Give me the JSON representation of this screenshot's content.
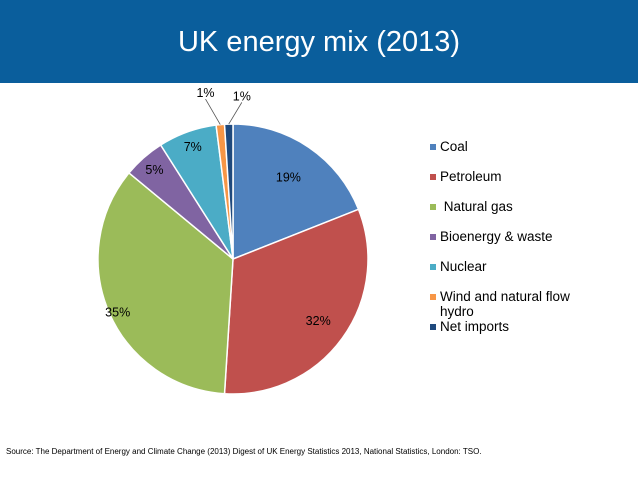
{
  "header": {
    "title": "UK energy mix (2013)"
  },
  "chart_data": {
    "type": "pie",
    "title": "UK energy mix (2013)",
    "categories": [
      "Coal",
      "Petroleum",
      "Natural gas",
      "Bioenergy & waste",
      "Nuclear",
      "Wind and natural flow hydro",
      "Net imports"
    ],
    "values": [
      19,
      32,
      35,
      5,
      7,
      1,
      1
    ],
    "labels": [
      "19%",
      "32%",
      "35%",
      "5%",
      "7%",
      "1%",
      "1%"
    ],
    "colors": [
      "#4f81bd",
      "#c0504d",
      "#9bbb59",
      "#8064a2",
      "#4bacc6",
      "#f79646",
      "#1f497d"
    ],
    "legend_position": "right"
  },
  "legend": {
    "items": [
      {
        "label": "Coal",
        "color": "#4f81bd"
      },
      {
        "label": "Petroleum",
        "color": "#c0504d"
      },
      {
        "label": " Natural gas",
        "color": "#9bbb59"
      },
      {
        "label": "Bioenergy & waste",
        "color": "#8064a2"
      },
      {
        "label": "Nuclear",
        "color": "#4bacc6"
      },
      {
        "label": "Wind and natural flow hydro",
        "color": "#f79646"
      },
      {
        "label": "Net imports",
        "color": "#1f497d"
      }
    ]
  },
  "footer": {
    "source": "Source: The Department of Energy and Climate Change (2013) Digest of UK Energy Statistics 2013, National Statistics, London: TSO."
  }
}
